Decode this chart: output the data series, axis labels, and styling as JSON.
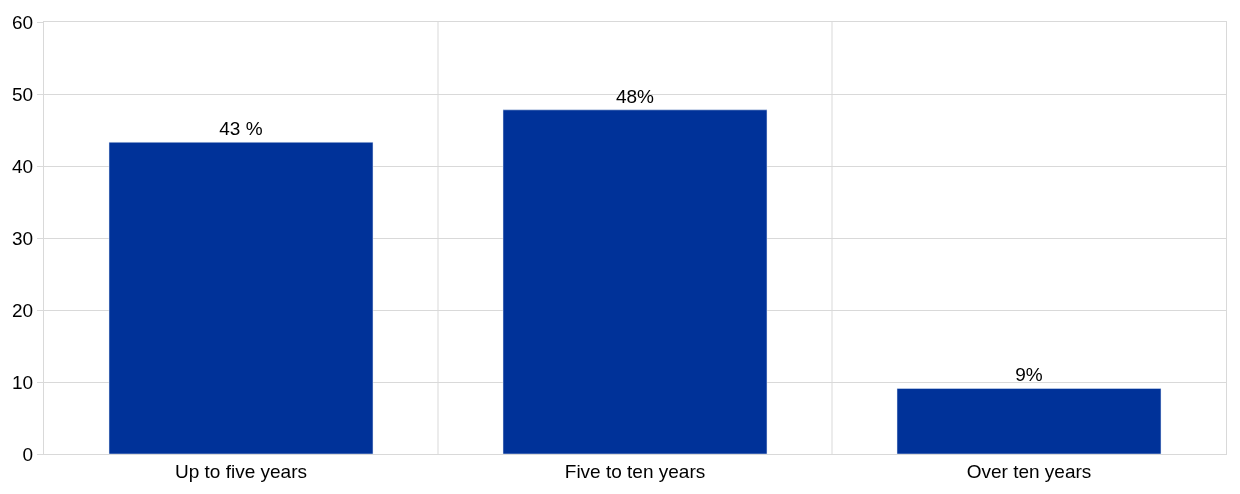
{
  "chart_data": {
    "type": "bar",
    "categories": [
      "Up to five years",
      "Five to ten years",
      "Over ten years"
    ],
    "values": [
      43.3,
      47.8,
      9.1
    ],
    "value_labels": [
      "43 %",
      "48%",
      "9%"
    ],
    "color": "#003299",
    "ylim": [
      0,
      60
    ],
    "yticks": [
      0,
      10,
      20,
      30,
      40,
      50,
      60
    ],
    "grid": true
  }
}
